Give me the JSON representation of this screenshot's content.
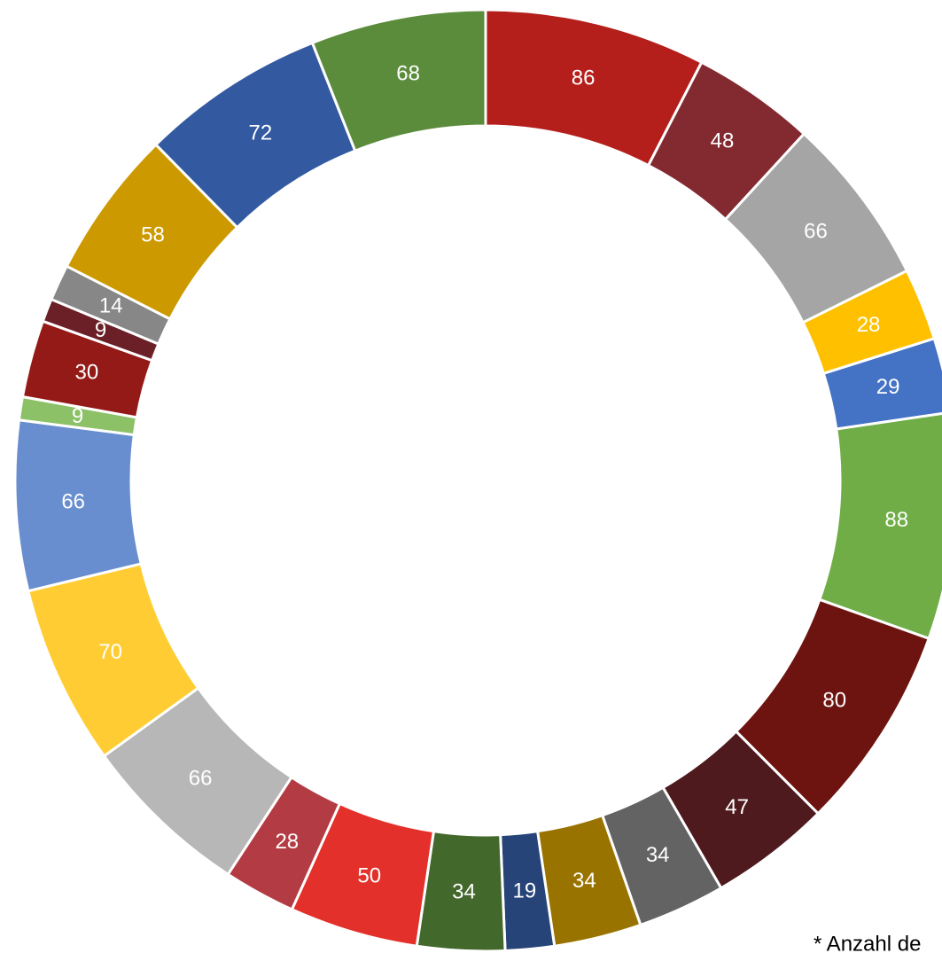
{
  "chart_data": {
    "type": "donut",
    "values": [
      86,
      48,
      66,
      28,
      29,
      88,
      80,
      47,
      34,
      34,
      19,
      34,
      50,
      28,
      66,
      70,
      66,
      9,
      30,
      9,
      14,
      58,
      72,
      68
    ],
    "colors": [
      "#b41f1c",
      "#832a31",
      "#a5a5a5",
      "#ffc000",
      "#4472c4",
      "#70ad47",
      "#6e1410",
      "#4e1a1e",
      "#636363",
      "#997300",
      "#264478",
      "#43682b",
      "#e3302a",
      "#b33c44",
      "#b7b7b7",
      "#ffcd33",
      "#698ed0",
      "#8cc168",
      "#931a17",
      "#6b2027",
      "#878787",
      "#cc9a00",
      "#335aa1",
      "#5b8c3b"
    ],
    "footnote": "* Anzahl de"
  }
}
